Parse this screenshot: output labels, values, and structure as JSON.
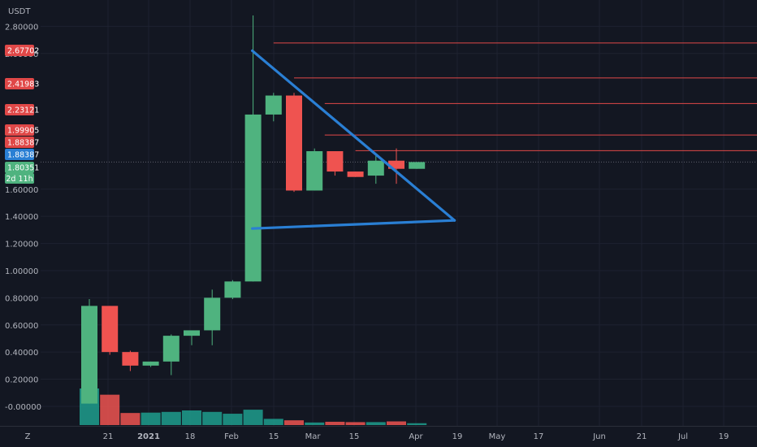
{
  "colors": {
    "background": "#131722",
    "grid": "#1e2230",
    "up": "#4fb37f",
    "down": "#ef5350",
    "volume_up": "#1f9e8d",
    "volume_down": "#ef5350",
    "trendline": "#2a7fd4",
    "resistance": "#e04848",
    "current_price": "#2a7fd4",
    "axis_text": "#b2b5be"
  },
  "chart_data": {
    "type": "candlestick",
    "quote_currency": "USDT",
    "interval_label": "2d 11h",
    "y_axis_labels": [
      "2.80000",
      "2.60000",
      "1.60000",
      "1.40000",
      "1.20000",
      "1.00000",
      "0.80000",
      "0.60000",
      "0.40000",
      "0.20000",
      "-0.00000"
    ],
    "ylim": [
      -0.15,
      2.97
    ],
    "x_axis_labels": [
      "21",
      "2021",
      "18",
      "Feb",
      "15",
      "Mar",
      "15",
      "Apr",
      "19",
      "May",
      "17",
      "Jun",
      "21",
      "Jul",
      "19"
    ],
    "price_tags": [
      {
        "value": 2.67702,
        "label": "2.67702",
        "type": "resistance"
      },
      {
        "value": 2.41983,
        "label": "2.41983",
        "type": "resistance"
      },
      {
        "value": 2.23121,
        "label": "2.23121",
        "type": "resistance"
      },
      {
        "value": 1.99905,
        "label": "1.99905",
        "type": "resistance"
      },
      {
        "value": 1.88387,
        "label": "1.88387",
        "type": "resistance"
      },
      {
        "value": 1.88387,
        "label": "1.88387",
        "type": "current"
      },
      {
        "value": 1.80351,
        "label": "1.80351",
        "type": "last"
      }
    ],
    "candles": [
      {
        "open": 0.02,
        "high": 0.79,
        "low": 0.02,
        "close": 0.74
      },
      {
        "open": 0.74,
        "high": 0.74,
        "low": 0.38,
        "close": 0.4
      },
      {
        "open": 0.4,
        "high": 0.41,
        "low": 0.26,
        "close": 0.3
      },
      {
        "open": 0.3,
        "high": 0.33,
        "low": 0.29,
        "close": 0.33
      },
      {
        "open": 0.33,
        "high": 0.53,
        "low": 0.23,
        "close": 0.52
      },
      {
        "open": 0.52,
        "high": 0.56,
        "low": 0.45,
        "close": 0.56
      },
      {
        "open": 0.56,
        "high": 0.86,
        "low": 0.45,
        "close": 0.8
      },
      {
        "open": 0.8,
        "high": 0.93,
        "low": 0.79,
        "close": 0.92
      },
      {
        "open": 0.92,
        "high": 2.88,
        "low": 0.92,
        "close": 2.15
      },
      {
        "open": 2.15,
        "high": 2.31,
        "low": 2.1,
        "close": 2.29
      },
      {
        "open": 2.29,
        "high": 2.31,
        "low": 1.58,
        "close": 1.59
      },
      {
        "open": 1.59,
        "high": 1.9,
        "low": 1.59,
        "close": 1.88
      },
      {
        "open": 1.88,
        "high": 1.88,
        "low": 1.7,
        "close": 1.73
      },
      {
        "open": 1.73,
        "high": 1.73,
        "low": 1.69,
        "close": 1.69
      },
      {
        "open": 1.7,
        "high": 1.86,
        "low": 1.64,
        "close": 1.81
      },
      {
        "open": 1.81,
        "high": 1.9,
        "low": 1.64,
        "close": 1.75
      },
      {
        "open": 1.75,
        "high": 1.8,
        "low": 1.75,
        "close": 1.8
      }
    ],
    "volumes": [
      {
        "value": 1.0,
        "up": true
      },
      {
        "value": 0.83,
        "up": false
      },
      {
        "value": 0.33,
        "up": false
      },
      {
        "value": 0.34,
        "up": true
      },
      {
        "value": 0.36,
        "up": true
      },
      {
        "value": 0.4,
        "up": true
      },
      {
        "value": 0.36,
        "up": true
      },
      {
        "value": 0.31,
        "up": true
      },
      {
        "value": 0.42,
        "up": true
      },
      {
        "value": 0.17,
        "up": true
      },
      {
        "value": 0.13,
        "up": false
      },
      {
        "value": 0.07,
        "up": true
      },
      {
        "value": 0.09,
        "up": false
      },
      {
        "value": 0.08,
        "up": false
      },
      {
        "value": 0.08,
        "up": true
      },
      {
        "value": 0.1,
        "up": false
      },
      {
        "value": 0.05,
        "up": true
      }
    ],
    "drawings": {
      "triangle": {
        "upper_line": {
          "from": {
            "index": 8,
            "value": 2.62
          },
          "to": {
            "index": 18,
            "value": 1.37
          }
        },
        "lower_line": {
          "from": {
            "index": 8,
            "value": 1.31
          },
          "to": {
            "index": 18,
            "value": 1.37
          }
        }
      },
      "resistance_lines": [
        {
          "value": 2.67702,
          "start_index": 9
        },
        {
          "value": 2.41983,
          "start_index": 10
        },
        {
          "value": 2.23121,
          "start_index": 11.5
        },
        {
          "value": 1.99905,
          "start_index": 11.5
        },
        {
          "value": 1.88387,
          "start_index": 13
        }
      ]
    }
  },
  "footer": {
    "logo": "Z"
  }
}
